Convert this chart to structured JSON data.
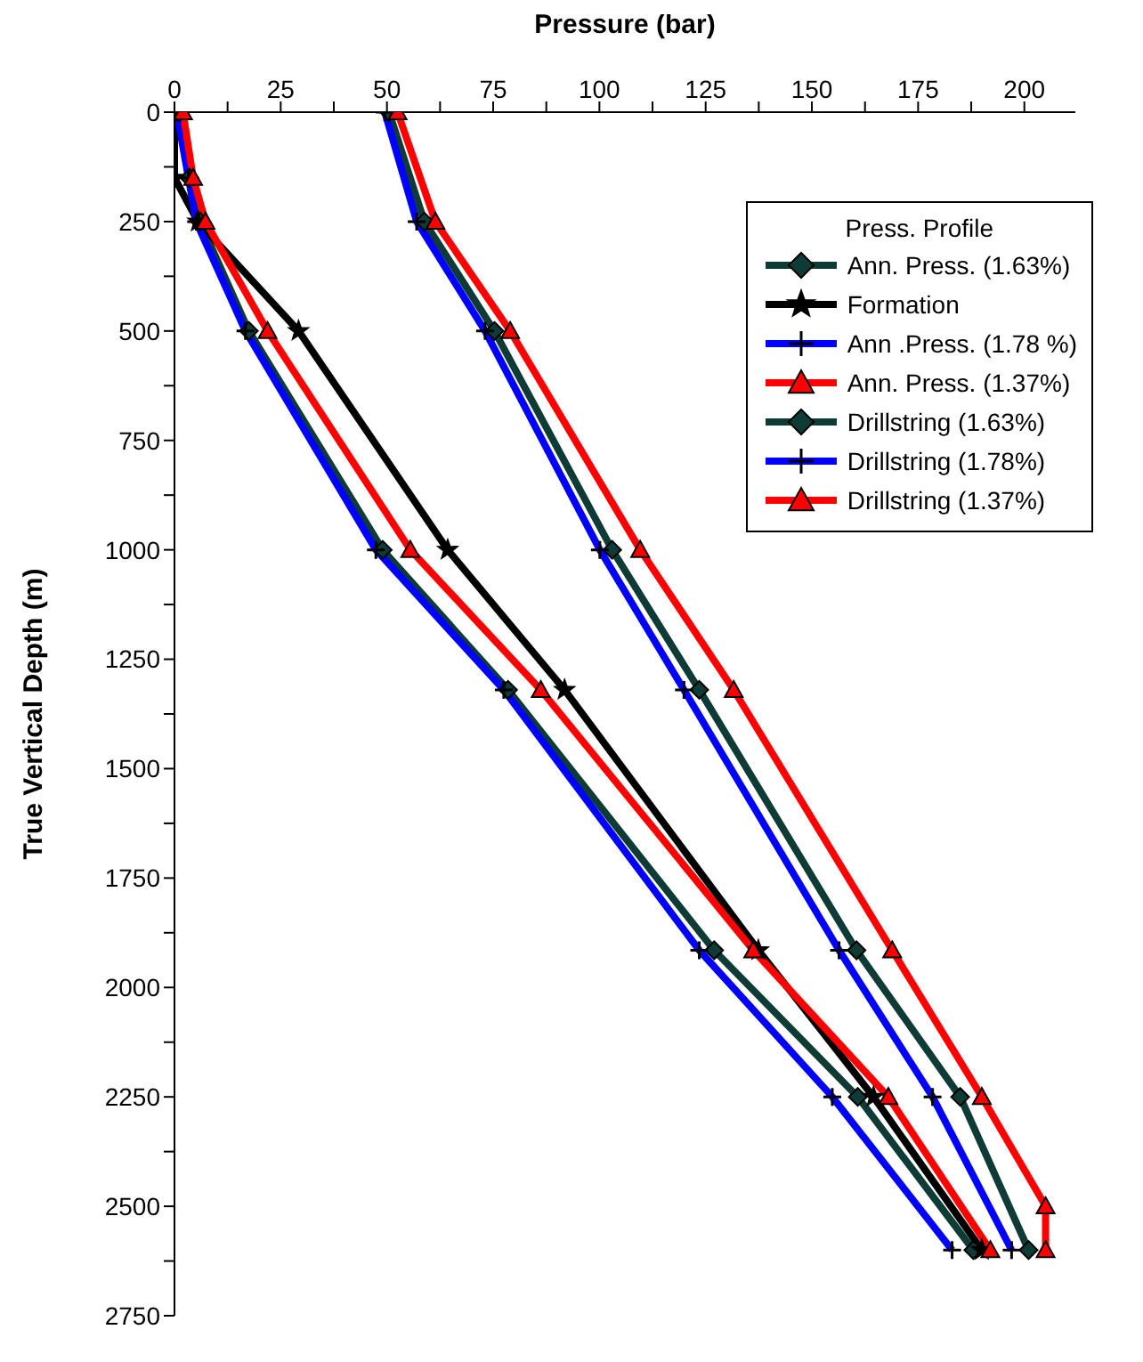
{
  "chart_data": {
    "type": "line",
    "xlabel": "Pressure (bar)",
    "ylabel": "True Vertical Depth (m)",
    "legend_title": "Press. Profile",
    "legend": "top right",
    "grid": false,
    "xlim": [
      0,
      212
    ],
    "ylim": [
      2750,
      0
    ],
    "xticks": [
      0,
      {
        "value": 12.5,
        "label": null
      },
      25,
      {
        "value": 37.5,
        "label": null
      },
      50,
      {
        "value": 62.5,
        "label": null
      },
      75,
      {
        "value": 87.5,
        "label": null
      },
      100,
      {
        "value": 112.5,
        "label": null
      },
      125,
      {
        "value": 137.5,
        "label": null
      },
      150,
      {
        "value": 162.5,
        "label": null
      },
      175,
      {
        "value": 187.5,
        "label": null
      },
      200
    ],
    "yticks": [
      0,
      {
        "value": 125,
        "label": null
      },
      250,
      {
        "value": 375,
        "label": null
      },
      500,
      {
        "value": 625,
        "label": null
      },
      750,
      {
        "value": 875,
        "label": null
      },
      1000,
      {
        "value": 1125,
        "label": null
      },
      1250,
      {
        "value": 1375,
        "label": null
      },
      1500,
      {
        "value": 1625,
        "label": null
      },
      1750,
      {
        "value": 1875,
        "label": null
      },
      2000,
      {
        "value": 2125,
        "label": null
      },
      2250,
      {
        "value": 2375,
        "label": null
      },
      2500,
      {
        "value": 2625,
        "label": null
      },
      2750
    ],
    "series": [
      {
        "name": "Ann. Press. (1.63%)",
        "color": "#0f3b36",
        "marker": "diamond",
        "x": [
          1,
          3.5,
          6,
          17.5,
          49,
          78.5,
          127,
          160.8,
          188
        ],
        "values": [
          0,
          150,
          250,
          500,
          1000,
          1320,
          1915,
          2250,
          2600
        ]
      },
      {
        "name": "Formation",
        "color": "#000000",
        "marker": "star",
        "x": [
          0,
          0,
          5.5,
          29.2,
          64.3,
          91.8,
          137.4,
          164.5,
          190
        ],
        "values": [
          0,
          150,
          250,
          500,
          1000,
          1320,
          1915,
          2250,
          2600
        ]
      },
      {
        "name": "Ann .Press. (1.78 %)",
        "color": "#0000ff",
        "marker": "cross",
        "x": [
          0.5,
          3.3,
          5.1,
          16.7,
          47.4,
          77.5,
          123.5,
          154.8,
          183
        ],
        "values": [
          0,
          150,
          250,
          500,
          1000,
          1320,
          1915,
          2250,
          2600
        ]
      },
      {
        "name": "Ann. Press. (1.37%)",
        "color": "#ff0000",
        "marker": "triangle",
        "x": [
          2,
          4.4,
          7.3,
          21.9,
          55.5,
          86.2,
          136.2,
          168,
          192
        ],
        "values": [
          0,
          150,
          250,
          500,
          1000,
          1320,
          1915,
          2250,
          2600
        ]
      },
      {
        "name": "Drillstring (1.63%)",
        "color": "#0f3b36",
        "marker": "diamond",
        "x": [
          50.5,
          58.8,
          75.3,
          103,
          123.5,
          160.5,
          184.9,
          201
        ],
        "values": [
          0,
          250,
          500,
          1000,
          1320,
          1915,
          2250,
          2600
        ]
      },
      {
        "name": "Drillstring (1.78%)",
        "color": "#0000ff",
        "marker": "cross",
        "x": [
          49.5,
          57,
          73.1,
          100.1,
          119.9,
          156.4,
          178.4,
          197
        ],
        "values": [
          0,
          250,
          500,
          1000,
          1320,
          1915,
          2250,
          2600
        ]
      },
      {
        "name": "Drillstring (1.37%)",
        "color": "#ff0000",
        "marker": "triangle",
        "x": [
          52.5,
          61.4,
          79,
          109.6,
          131.6,
          168.9,
          190,
          205,
          205
        ],
        "values": [
          0,
          250,
          500,
          1000,
          1320,
          1915,
          2250,
          2500,
          2600
        ]
      }
    ]
  }
}
